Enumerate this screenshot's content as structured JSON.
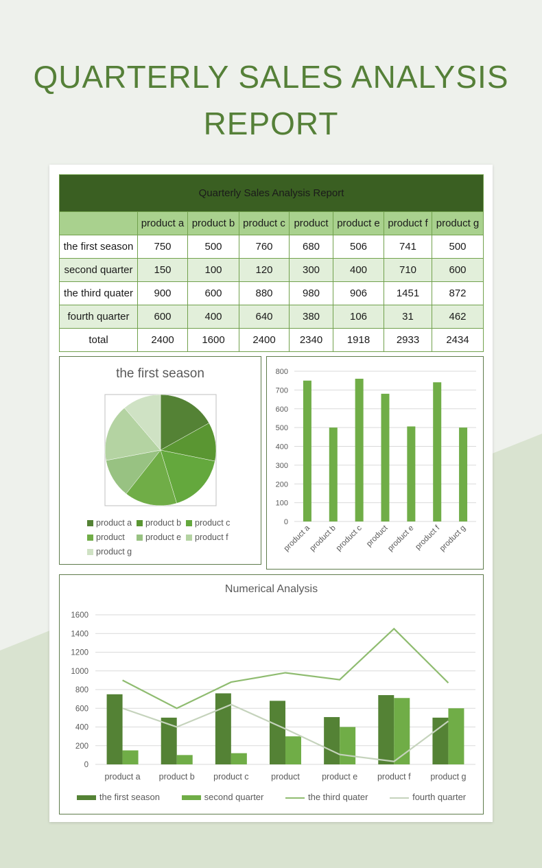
{
  "page_title": "QUARTERLY SALES ANALYSIS REPORT",
  "table": {
    "title": "Quarterly Sales Analysis Report",
    "columns": [
      "product a",
      "product b",
      "product c",
      "product",
      "product e",
      "product f",
      "product g"
    ],
    "rows": [
      {
        "label": "the first season",
        "values": [
          "750",
          "500",
          "760",
          "680",
          "506",
          "741",
          "500"
        ]
      },
      {
        "label": "second quarter",
        "values": [
          "150",
          "100",
          "120",
          "300",
          "400",
          "710",
          "600"
        ]
      },
      {
        "label": "the third quater",
        "values": [
          "900",
          "600",
          "880",
          "980",
          "906",
          "1451",
          "872"
        ]
      },
      {
        "label": "fourth quarter",
        "values": [
          "600",
          "400",
          "640",
          "380",
          "106",
          "31",
          "462"
        ]
      },
      {
        "label": "total",
        "values": [
          "2400",
          "1600",
          "2400",
          "2340",
          "1918",
          "2933",
          "2434"
        ]
      }
    ]
  },
  "colors": {
    "title_bg": "#3a5f22",
    "header_bg": "#a9d18e",
    "row_tint": "#e2efda",
    "accent_text": "#558038",
    "bar": "#70ad47"
  },
  "chart_data": [
    {
      "type": "pie",
      "title": "the first season",
      "categories": [
        "product a",
        "product b",
        "product c",
        "product",
        "product e",
        "product f",
        "product g"
      ],
      "values": [
        750,
        500,
        760,
        680,
        506,
        741,
        500
      ],
      "colors": [
        "#548235",
        "#5a9632",
        "#64a83d",
        "#70ad47",
        "#98c282",
        "#b4d3a2",
        "#cfe2c4"
      ],
      "legend_labels": [
        "product a",
        "product b",
        "product c",
        "product",
        "product e",
        "product f",
        "product g"
      ],
      "legend": "bottom"
    },
    {
      "type": "bar",
      "categories": [
        "product a",
        "product b",
        "product c",
        "product",
        "product e",
        "product f",
        "product g"
      ],
      "values": [
        750,
        500,
        760,
        680,
        506,
        741,
        500
      ],
      "ylim": [
        0,
        800
      ],
      "yticks": [
        "0",
        "100",
        "200",
        "300",
        "400",
        "500",
        "600",
        "700",
        "800"
      ],
      "grid": true,
      "color": "#70ad47"
    },
    {
      "type": "bar",
      "subtype": "combo",
      "title": "Numerical Analysis",
      "categories": [
        "product a",
        "product b",
        "product c",
        "product",
        "product e",
        "product f",
        "product g"
      ],
      "ylim": [
        0,
        1600
      ],
      "yticks": [
        "0",
        "200",
        "400",
        "600",
        "800",
        "1000",
        "1200",
        "1400",
        "1600"
      ],
      "grid": true,
      "legend": "bottom",
      "series": [
        {
          "name": "the first season",
          "kind": "bar",
          "values": [
            750,
            500,
            760,
            680,
            506,
            741,
            500
          ],
          "color": "#548235"
        },
        {
          "name": "second quarter",
          "kind": "bar",
          "values": [
            150,
            100,
            120,
            300,
            400,
            710,
            600
          ],
          "color": "#70ad47"
        },
        {
          "name": "the third quater",
          "kind": "line",
          "values": [
            900,
            600,
            880,
            980,
            906,
            1451,
            872
          ],
          "color": "#8fbc70"
        },
        {
          "name": "fourth quarter",
          "kind": "line",
          "values": [
            600,
            400,
            640,
            380,
            106,
            31,
            462
          ],
          "color": "#c5d3bc"
        }
      ]
    }
  ]
}
